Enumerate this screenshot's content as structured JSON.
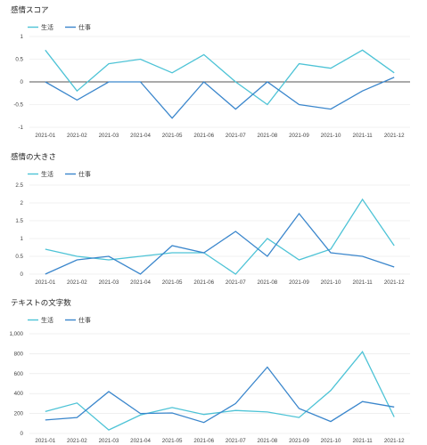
{
  "chart_data": [
    {
      "type": "line",
      "title": "感情スコア",
      "categories": [
        "2021-01",
        "2021-02",
        "2021-03",
        "2021-04",
        "2021-05",
        "2021-06",
        "2021-07",
        "2021-08",
        "2021-09",
        "2021-10",
        "2021-11",
        "2021-12"
      ],
      "ylim": [
        -1,
        1
      ],
      "yticks": [
        1,
        0.5,
        0,
        -0.5,
        -1
      ],
      "ytick_labels": [
        "1",
        "0.5",
        "0",
        "-0.5",
        "-1"
      ],
      "zero_line": true,
      "grid": true,
      "legend_position": "top-left",
      "series": [
        {
          "name": "生活",
          "color": "#4dc3d6",
          "values": [
            0.7,
            -0.2,
            0.4,
            0.5,
            0.2,
            0.6,
            0.0,
            -0.5,
            0.4,
            0.3,
            0.7,
            0.2
          ]
        },
        {
          "name": "仕事",
          "color": "#3a86cc",
          "values": [
            0.0,
            -0.4,
            0.0,
            0.0,
            -0.8,
            0.0,
            -0.6,
            0.0,
            -0.5,
            -0.6,
            -0.2,
            0.1
          ]
        }
      ]
    },
    {
      "type": "line",
      "title": "感情の大きさ",
      "categories": [
        "2021-01",
        "2021-02",
        "2021-03",
        "2021-04",
        "2021-05",
        "2021-06",
        "2021-07",
        "2021-08",
        "2021-09",
        "2021-10",
        "2021-11",
        "2021-12"
      ],
      "ylim": [
        0,
        2.5
      ],
      "yticks": [
        2.5,
        2,
        1.5,
        1,
        0.5,
        0
      ],
      "ytick_labels": [
        "2.5",
        "2",
        "1.5",
        "1",
        "0.5",
        "0"
      ],
      "zero_line": false,
      "grid": true,
      "legend_position": "top-left",
      "series": [
        {
          "name": "生活",
          "color": "#4dc3d6",
          "values": [
            0.7,
            0.5,
            0.4,
            0.5,
            0.6,
            0.6,
            0.0,
            1.0,
            0.4,
            0.7,
            2.1,
            0.8
          ]
        },
        {
          "name": "仕事",
          "color": "#3a86cc",
          "values": [
            0.0,
            0.4,
            0.5,
            0.0,
            0.8,
            0.6,
            1.2,
            0.5,
            1.7,
            0.6,
            0.5,
            0.2
          ]
        }
      ]
    },
    {
      "type": "line",
      "title": "テキストの文字数",
      "categories": [
        "2021-01",
        "2021-02",
        "2021-03",
        "2021-04",
        "2021-05",
        "2021-06",
        "2021-07",
        "2021-08",
        "2021-09",
        "2021-10",
        "2021-11",
        "2021-12"
      ],
      "ylim": [
        0,
        1000
      ],
      "yticks": [
        1000,
        800,
        600,
        400,
        200,
        0
      ],
      "ytick_labels": [
        "1,000",
        "800",
        "600",
        "400",
        "200",
        "0"
      ],
      "zero_line": false,
      "grid": true,
      "legend_position": "top-left",
      "series": [
        {
          "name": "生活",
          "color": "#4dc3d6",
          "values": [
            220,
            305,
            35,
            185,
            260,
            190,
            230,
            215,
            160,
            430,
            820,
            165
          ]
        },
        {
          "name": "仕事",
          "color": "#3a86cc",
          "values": [
            135,
            160,
            420,
            200,
            205,
            110,
            300,
            665,
            250,
            120,
            320,
            265
          ]
        }
      ]
    }
  ]
}
